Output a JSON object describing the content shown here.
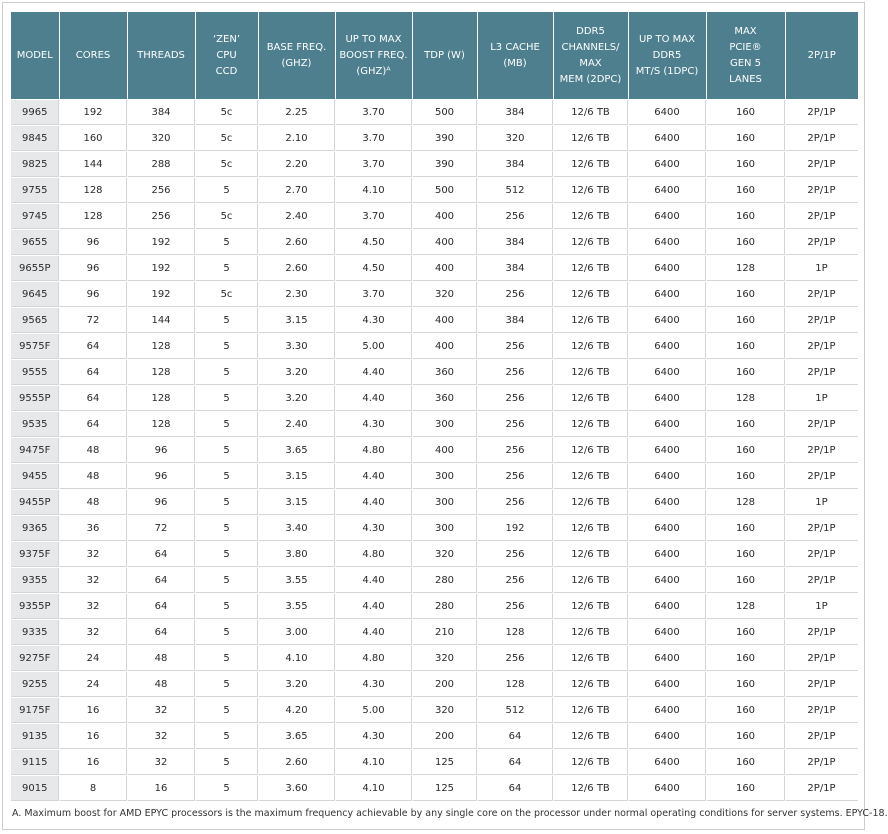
{
  "table": {
    "headers": [
      "MODEL",
      "CORES",
      "THREADS",
      "‘ZEN’\nCPU\nCCD",
      "BASE FREQ.\n(GHZ)",
      "UP TO MAX\nBOOST FREQ.\n(GHZ)ᴬ",
      "TDP (W)",
      "L3 CACHE\n(MB)",
      "DDR5\nCHANNELS/\nMAX\nMEM (2DPC)",
      "UP TO MAX\nDDR5\nMT/S (1DPC)",
      "MAX\nPCIE®\nGEN 5\nLANES",
      "2P/1P"
    ],
    "rows": [
      [
        "9965",
        "192",
        "384",
        "5c",
        "2.25",
        "3.70",
        "500",
        "384",
        "12/6 TB",
        "6400",
        "160",
        "2P/1P"
      ],
      [
        "9845",
        "160",
        "320",
        "5c",
        "2.10",
        "3.70",
        "390",
        "320",
        "12/6 TB",
        "6400",
        "160",
        "2P/1P"
      ],
      [
        "9825",
        "144",
        "288",
        "5c",
        "2.20",
        "3.70",
        "390",
        "384",
        "12/6 TB",
        "6400",
        "160",
        "2P/1P"
      ],
      [
        "9755",
        "128",
        "256",
        "5",
        "2.70",
        "4.10",
        "500",
        "512",
        "12/6 TB",
        "6400",
        "160",
        "2P/1P"
      ],
      [
        "9745",
        "128",
        "256",
        "5c",
        "2.40",
        "3.70",
        "400",
        "256",
        "12/6 TB",
        "6400",
        "160",
        "2P/1P"
      ],
      [
        "9655",
        "96",
        "192",
        "5",
        "2.60",
        "4.50",
        "400",
        "384",
        "12/6 TB",
        "6400",
        "160",
        "2P/1P"
      ],
      [
        "9655P",
        "96",
        "192",
        "5",
        "2.60",
        "4.50",
        "400",
        "384",
        "12/6 TB",
        "6400",
        "128",
        "1P"
      ],
      [
        "9645",
        "96",
        "192",
        "5c",
        "2.30",
        "3.70",
        "320",
        "256",
        "12/6 TB",
        "6400",
        "160",
        "2P/1P"
      ],
      [
        "9565",
        "72",
        "144",
        "5",
        "3.15",
        "4.30",
        "400",
        "384",
        "12/6 TB",
        "6400",
        "160",
        "2P/1P"
      ],
      [
        "9575F",
        "64",
        "128",
        "5",
        "3.30",
        "5.00",
        "400",
        "256",
        "12/6 TB",
        "6400",
        "160",
        "2P/1P"
      ],
      [
        "9555",
        "64",
        "128",
        "5",
        "3.20",
        "4.40",
        "360",
        "256",
        "12/6 TB",
        "6400",
        "160",
        "2P/1P"
      ],
      [
        "9555P",
        "64",
        "128",
        "5",
        "3.20",
        "4.40",
        "360",
        "256",
        "12/6 TB",
        "6400",
        "128",
        "1P"
      ],
      [
        "9535",
        "64",
        "128",
        "5",
        "2.40",
        "4.30",
        "300",
        "256",
        "12/6 TB",
        "6400",
        "160",
        "2P/1P"
      ],
      [
        "9475F",
        "48",
        "96",
        "5",
        "3.65",
        "4.80",
        "400",
        "256",
        "12/6 TB",
        "6400",
        "160",
        "2P/1P"
      ],
      [
        "9455",
        "48",
        "96",
        "5",
        "3.15",
        "4.40",
        "300",
        "256",
        "12/6 TB",
        "6400",
        "160",
        "2P/1P"
      ],
      [
        "9455P",
        "48",
        "96",
        "5",
        "3.15",
        "4.40",
        "300",
        "256",
        "12/6 TB",
        "6400",
        "128",
        "1P"
      ],
      [
        "9365",
        "36",
        "72",
        "5",
        "3.40",
        "4.30",
        "300",
        "192",
        "12/6 TB",
        "6400",
        "160",
        "2P/1P"
      ],
      [
        "9375F",
        "32",
        "64",
        "5",
        "3.80",
        "4.80",
        "320",
        "256",
        "12/6 TB",
        "6400",
        "160",
        "2P/1P"
      ],
      [
        "9355",
        "32",
        "64",
        "5",
        "3.55",
        "4.40",
        "280",
        "256",
        "12/6 TB",
        "6400",
        "160",
        "2P/1P"
      ],
      [
        "9355P",
        "32",
        "64",
        "5",
        "3.55",
        "4.40",
        "280",
        "256",
        "12/6 TB",
        "6400",
        "128",
        "1P"
      ],
      [
        "9335",
        "32",
        "64",
        "5",
        "3.00",
        "4.40",
        "210",
        "128",
        "12/6 TB",
        "6400",
        "160",
        "2P/1P"
      ],
      [
        "9275F",
        "24",
        "48",
        "5",
        "4.10",
        "4.80",
        "320",
        "256",
        "12/6 TB",
        "6400",
        "160",
        "2P/1P"
      ],
      [
        "9255",
        "24",
        "48",
        "5",
        "3.20",
        "4.30",
        "200",
        "128",
        "12/6 TB",
        "6400",
        "160",
        "2P/1P"
      ],
      [
        "9175F",
        "16",
        "32",
        "5",
        "4.20",
        "5.00",
        "320",
        "512",
        "12/6 TB",
        "6400",
        "160",
        "2P/1P"
      ],
      [
        "9135",
        "16",
        "32",
        "5",
        "3.65",
        "4.30",
        "200",
        "64",
        "12/6 TB",
        "6400",
        "160",
        "2P/1P"
      ],
      [
        "9115",
        "16",
        "32",
        "5",
        "2.60",
        "4.10",
        "125",
        "64",
        "12/6 TB",
        "6400",
        "160",
        "2P/1P"
      ],
      [
        "9015",
        "8",
        "16",
        "5",
        "3.60",
        "4.10",
        "125",
        "64",
        "12/6 TB",
        "6400",
        "160",
        "2P/1P"
      ]
    ]
  },
  "footnote": "A. Maximum boost for AMD EPYC processors is the maximum frequency achievable by any single core on the processor under normal operating conditions for server systems. EPYC-18.",
  "colors": {
    "header_bg": "#4d7f8e",
    "header_text": "#ffffff",
    "model_col_bg": "#e6e8e9",
    "row_rule": "#c5c9cc"
  }
}
